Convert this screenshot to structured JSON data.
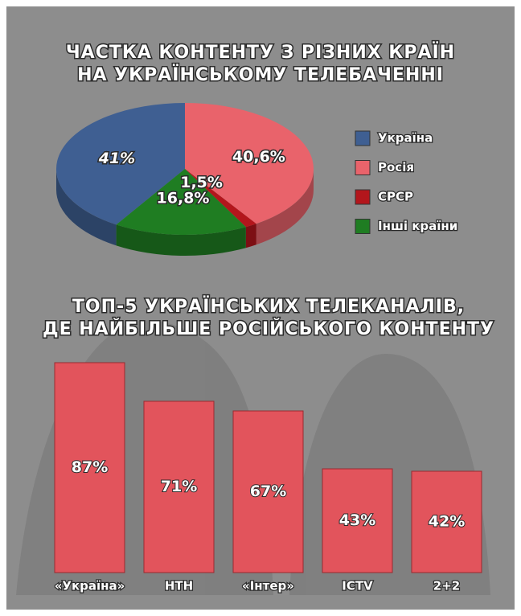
{
  "chart_data": [
    {
      "type": "pie",
      "title": [
        "ЧАСТКА КОНТЕНТУ З РІЗНИХ КРАЇН",
        "НА УКРАЇНСЬКОМУ ТЕЛЕБАЧЕННІ"
      ],
      "categories": [
        "Україна",
        "Росія",
        "СРСР",
        "Інші країни"
      ],
      "values": [
        41,
        40.6,
        1.5,
        16.8
      ],
      "value_labels": [
        "41%",
        "40,6%",
        "1,5%",
        "16,8%"
      ],
      "colors": [
        "#3f5f92",
        "#e9636b",
        "#b3161c",
        "#1f7d22"
      ]
    },
    {
      "type": "bar",
      "title": [
        "ТОП-5 УКРАЇНСЬКИХ ТЕЛЕКАНАЛІВ,",
        "ДЕ НАЙБІЛЬШЕ РОСІЙСЬКОГО КОНТЕНТУ"
      ],
      "categories": [
        "«Україна»",
        "НТН",
        "«Інтер»",
        "ICTV",
        "2+2"
      ],
      "values": [
        87,
        71,
        67,
        43,
        42
      ],
      "value_labels": [
        "87%",
        "71%",
        "67%",
        "43%",
        "42%"
      ],
      "color": "#e2545c"
    }
  ]
}
